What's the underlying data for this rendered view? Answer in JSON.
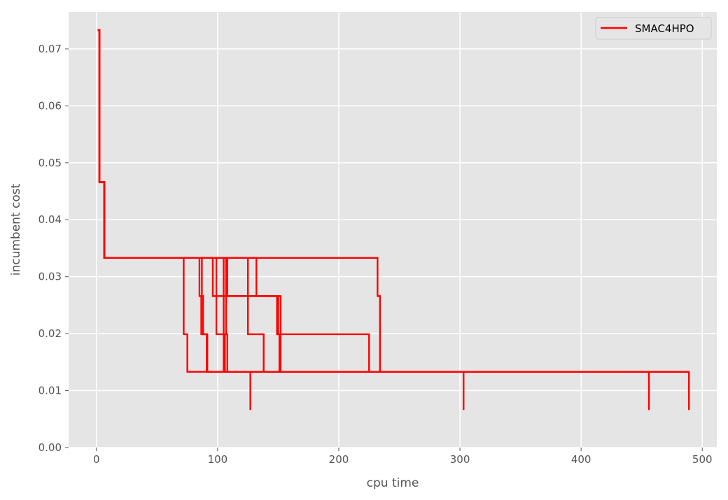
{
  "chart_data": {
    "type": "line",
    "title": "",
    "xlabel": "cpu time",
    "ylabel": "incumbent cost",
    "xlim": [
      -23,
      512
    ],
    "ylim": [
      0,
      0.0765
    ],
    "x_ticks": [
      0,
      100,
      200,
      300,
      400,
      500
    ],
    "x_tick_labels": [
      "0",
      "100",
      "200",
      "300",
      "400",
      "500"
    ],
    "y_ticks": [
      0.0,
      0.01,
      0.02,
      0.03,
      0.04,
      0.05,
      0.06,
      0.07
    ],
    "y_tick_labels": [
      "0.00",
      "0.01",
      "0.02",
      "0.03",
      "0.04",
      "0.05",
      "0.06",
      "0.07"
    ],
    "grid": true,
    "background": "#e5e5e5",
    "legend": {
      "position": "top-right",
      "entries": [
        "SMAC4HPO"
      ]
    },
    "series": [
      {
        "name": "SMAC4HPO",
        "color": "#ff0000",
        "points": [
          [
            1,
            0.0733
          ],
          [
            2.5,
            0.0733
          ],
          [
            2.5,
            0.0466
          ],
          [
            6.5,
            0.0466
          ],
          [
            6.5,
            0.0333
          ],
          [
            72,
            0.0333
          ],
          [
            72,
            0.0199
          ],
          [
            75,
            0.0199
          ],
          [
            75,
            0.0133
          ],
          [
            489,
            0.0133
          ],
          [
            489,
            0.0066
          ]
        ]
      },
      {
        "name": "SMAC4HPO",
        "color": "#ff0000",
        "points": [
          [
            1,
            0.0733
          ],
          [
            2.5,
            0.0733
          ],
          [
            2.5,
            0.0466
          ],
          [
            6.5,
            0.0466
          ],
          [
            6.5,
            0.0333
          ],
          [
            85,
            0.0333
          ],
          [
            85,
            0.0266
          ],
          [
            86.5,
            0.0266
          ],
          [
            86.5,
            0.0199
          ],
          [
            91,
            0.0199
          ],
          [
            91,
            0.0133
          ],
          [
            127,
            0.0133
          ],
          [
            127,
            0.0066
          ]
        ]
      },
      {
        "name": "SMAC4HPO",
        "color": "#ff0000",
        "points": [
          [
            1,
            0.0733
          ],
          [
            2.5,
            0.0733
          ],
          [
            2.5,
            0.0466
          ],
          [
            6.5,
            0.0466
          ],
          [
            6.5,
            0.0333
          ],
          [
            87,
            0.0333
          ],
          [
            87,
            0.0266
          ],
          [
            88,
            0.0266
          ],
          [
            88,
            0.0199
          ],
          [
            91.5,
            0.0199
          ],
          [
            91.5,
            0.0133
          ],
          [
            303,
            0.0133
          ],
          [
            303,
            0.0066
          ]
        ]
      },
      {
        "name": "SMAC4HPO",
        "color": "#ff0000",
        "points": [
          [
            1,
            0.0733
          ],
          [
            2.5,
            0.0733
          ],
          [
            2.5,
            0.0466
          ],
          [
            6.5,
            0.0466
          ],
          [
            6.5,
            0.0333
          ],
          [
            96,
            0.0333
          ],
          [
            96,
            0.0266
          ],
          [
            150,
            0.0266
          ],
          [
            150,
            0.0199
          ],
          [
            225,
            0.0199
          ],
          [
            225,
            0.0133
          ],
          [
            456,
            0.0133
          ],
          [
            456,
            0.0066
          ]
        ]
      },
      {
        "name": "SMAC4HPO",
        "color": "#ff0000",
        "points": [
          [
            1,
            0.0733
          ],
          [
            2.5,
            0.0733
          ],
          [
            2.5,
            0.0466
          ],
          [
            6.5,
            0.0466
          ],
          [
            6.5,
            0.0333
          ],
          [
            99,
            0.0333
          ],
          [
            99,
            0.0199
          ],
          [
            106,
            0.0199
          ],
          [
            106,
            0.0133
          ],
          [
            489,
            0.0133
          ]
        ]
      },
      {
        "name": "SMAC4HPO",
        "color": "#ff0000",
        "points": [
          [
            1,
            0.0733
          ],
          [
            2.5,
            0.0733
          ],
          [
            2.5,
            0.0466
          ],
          [
            6.5,
            0.0466
          ],
          [
            6.5,
            0.0333
          ],
          [
            105,
            0.0333
          ],
          [
            105,
            0.0133
          ],
          [
            489,
            0.0133
          ]
        ]
      },
      {
        "name": "SMAC4HPO",
        "color": "#ff0000",
        "points": [
          [
            1,
            0.0733
          ],
          [
            2.5,
            0.0733
          ],
          [
            2.5,
            0.0466
          ],
          [
            6.5,
            0.0466
          ],
          [
            6.5,
            0.0333
          ],
          [
            108,
            0.0333
          ],
          [
            108,
            0.0266
          ],
          [
            152,
            0.0266
          ],
          [
            152,
            0.0133
          ],
          [
            489,
            0.0133
          ]
        ]
      },
      {
        "name": "SMAC4HPO",
        "color": "#ff0000",
        "points": [
          [
            1,
            0.0733
          ],
          [
            2.5,
            0.0733
          ],
          [
            2.5,
            0.0466
          ],
          [
            6.5,
            0.0466
          ],
          [
            6.5,
            0.0333
          ],
          [
            125,
            0.0333
          ],
          [
            125,
            0.0199
          ],
          [
            138,
            0.0199
          ],
          [
            138,
            0.0133
          ],
          [
            489,
            0.0133
          ]
        ]
      },
      {
        "name": "SMAC4HPO",
        "color": "#ff0000",
        "points": [
          [
            1,
            0.0733
          ],
          [
            2.5,
            0.0733
          ],
          [
            2.5,
            0.0466
          ],
          [
            6.5,
            0.0466
          ],
          [
            6.5,
            0.0333
          ],
          [
            132,
            0.0333
          ],
          [
            132,
            0.0266
          ],
          [
            149,
            0.0266
          ],
          [
            149,
            0.0199
          ],
          [
            151,
            0.0199
          ],
          [
            151,
            0.0133
          ],
          [
            489,
            0.0133
          ]
        ]
      },
      {
        "name": "SMAC4HPO",
        "color": "#ff0000",
        "points": [
          [
            1,
            0.0733
          ],
          [
            2.5,
            0.0733
          ],
          [
            2.5,
            0.0466
          ],
          [
            6.5,
            0.0466
          ],
          [
            6.5,
            0.0333
          ],
          [
            232,
            0.0333
          ],
          [
            232,
            0.0266
          ],
          [
            234,
            0.0266
          ],
          [
            234,
            0.0133
          ],
          [
            489,
            0.0133
          ]
        ]
      },
      {
        "name": "SMAC4HPO",
        "color": "#ff0000",
        "points": [
          [
            1,
            0.0733
          ],
          [
            2.5,
            0.0733
          ],
          [
            2.5,
            0.0466
          ],
          [
            6.5,
            0.0466
          ],
          [
            6.5,
            0.0333
          ],
          [
            107,
            0.0333
          ],
          [
            107,
            0.0199
          ],
          [
            108,
            0.0199
          ],
          [
            108,
            0.0133
          ],
          [
            489,
            0.0133
          ]
        ]
      }
    ]
  }
}
